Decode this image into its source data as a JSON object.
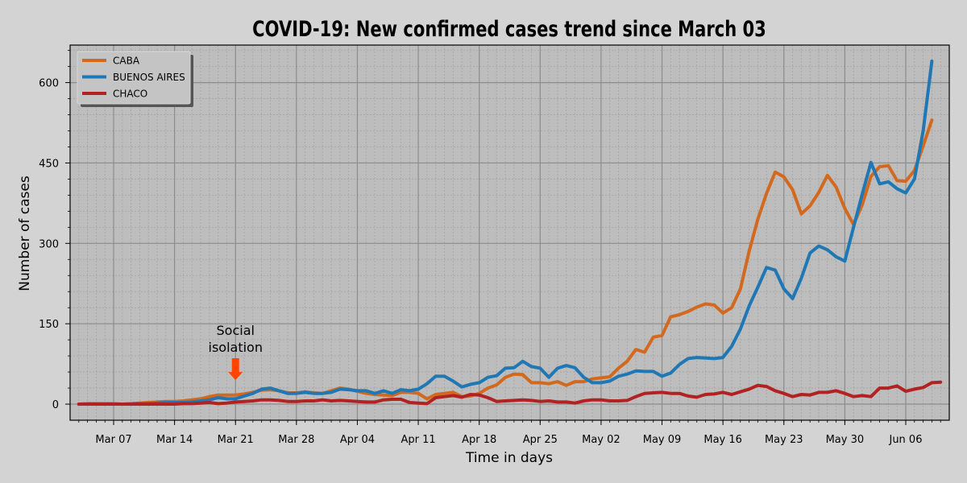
{
  "colors": {
    "background": "#d3d3d3",
    "plot_background": "#bdbdbd",
    "major_grid": "#8c8c8c",
    "minor_grid": "#a3a3a3",
    "annotation_arrow": "#ff4500"
  },
  "chart_data": {
    "type": "line",
    "title": "COVID-19: New confirmed cases trend since March 03",
    "xlabel": "Time in days",
    "ylabel": "Number of cases",
    "x_start": "2020-03-03",
    "xlim": [
      "2020-03-02",
      "2020-06-11"
    ],
    "ylim": [
      -30,
      670
    ],
    "yticks": [
      0,
      150,
      300,
      450,
      600
    ],
    "xtick_labels": [
      "Mar 07",
      "Mar 14",
      "Mar 21",
      "Mar 28",
      "Apr 04",
      "Apr 11",
      "Apr 18",
      "Apr 25",
      "May 02",
      "May 09",
      "May 16",
      "May 23",
      "May 30",
      "Jun 06"
    ],
    "xtick_dates": [
      "2020-03-07",
      "2020-03-14",
      "2020-03-21",
      "2020-03-28",
      "2020-04-04",
      "2020-04-11",
      "2020-04-18",
      "2020-04-25",
      "2020-05-02",
      "2020-05-09",
      "2020-05-16",
      "2020-05-23",
      "2020-05-30",
      "2020-06-06"
    ],
    "grid": true,
    "legend_position": "top-left",
    "annotation": {
      "text": "Social isolation",
      "lines": [
        "Social",
        "isolation"
      ],
      "date": "2020-03-21",
      "y": 45
    },
    "series": [
      {
        "name": "CABA",
        "color": "#d2691e",
        "values": [
          0,
          1,
          1,
          1,
          1,
          0,
          1,
          2,
          3,
          4,
          5,
          5,
          6,
          8,
          10,
          14,
          17,
          17,
          17,
          19,
          22,
          26,
          27,
          25,
          21,
          21,
          23,
          21,
          20,
          25,
          30,
          28,
          24,
          20,
          18,
          17,
          16,
          22,
          22,
          20,
          10,
          18,
          20,
          22,
          14,
          15,
          20,
          30,
          36,
          50,
          56,
          55,
          40,
          40,
          38,
          42,
          35,
          42,
          42,
          47,
          49,
          51,
          67,
          80,
          102,
          97,
          125,
          128,
          163,
          167,
          173,
          181,
          187,
          185,
          170,
          180,
          215,
          285,
          345,
          393,
          433,
          424,
          400,
          355,
          370,
          395,
          427,
          405,
          365,
          335,
          372,
          425,
          443,
          445,
          417,
          416,
          436,
          482,
          530
        ]
      },
      {
        "name": "BUENOS AIRES",
        "color": "#1f77b4",
        "values": [
          0,
          0,
          0,
          0,
          0,
          0,
          0,
          1,
          1,
          2,
          3,
          3,
          3,
          4,
          6,
          8,
          12,
          10,
          10,
          15,
          20,
          28,
          30,
          25,
          20,
          20,
          22,
          20,
          20,
          22,
          28,
          27,
          25,
          25,
          20,
          25,
          20,
          27,
          25,
          28,
          38,
          52,
          52,
          43,
          32,
          37,
          40,
          50,
          53,
          67,
          68,
          80,
          70,
          67,
          50,
          67,
          72,
          68,
          50,
          40,
          40,
          43,
          52,
          56,
          62,
          61,
          61,
          52,
          58,
          74,
          85,
          87,
          86,
          85,
          87,
          108,
          140,
          183,
          218,
          255,
          250,
          215,
          197,
          235,
          282,
          295,
          288,
          275,
          267,
          330,
          392,
          451,
          411,
          415,
          402,
          394,
          420,
          510,
          640
        ]
      },
      {
        "name": "CHACO",
        "color": "#b22222",
        "values": [
          0,
          0,
          0,
          0,
          0,
          0,
          0,
          0,
          0,
          0,
          0,
          0,
          1,
          1,
          2,
          3,
          1,
          2,
          4,
          5,
          6,
          8,
          8,
          7,
          5,
          5,
          6,
          6,
          8,
          6,
          7,
          6,
          5,
          4,
          4,
          8,
          9,
          9,
          3,
          2,
          1,
          12,
          14,
          16,
          13,
          18,
          17,
          12,
          5,
          6,
          7,
          8,
          7,
          5,
          6,
          4,
          4,
          2,
          6,
          8,
          8,
          6,
          6,
          7,
          14,
          20,
          21,
          22,
          20,
          20,
          15,
          13,
          18,
          19,
          22,
          18,
          23,
          28,
          35,
          33,
          25,
          20,
          14,
          18,
          17,
          22,
          22,
          25,
          20,
          14,
          16,
          14,
          30,
          30,
          34,
          24,
          28,
          31,
          40,
          41
        ]
      }
    ]
  }
}
